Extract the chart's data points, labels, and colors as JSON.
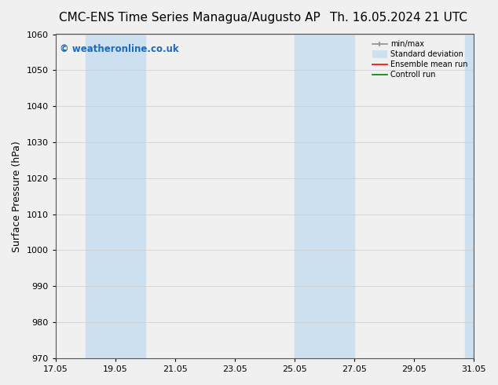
{
  "title_left": "CMC-ENS Time Series Managua/Augusto AP",
  "title_right": "Th. 16.05.2024 21 UTC",
  "ylabel": "Surface Pressure (hPa)",
  "ylim": [
    970,
    1060
  ],
  "yticks": [
    970,
    980,
    990,
    1000,
    1010,
    1020,
    1030,
    1040,
    1050,
    1060
  ],
  "xlim": [
    0,
    14
  ],
  "xtick_labels": [
    "17.05",
    "19.05",
    "21.05",
    "23.05",
    "25.05",
    "27.05",
    "29.05",
    "31.05"
  ],
  "xtick_positions": [
    0,
    2,
    4,
    6,
    8,
    10,
    12,
    14
  ],
  "shaded_bands": [
    {
      "xmin": 1.0,
      "xmax": 3.0,
      "color": "#cde0f0"
    },
    {
      "xmin": 8.0,
      "xmax": 10.0,
      "color": "#cde0f0"
    },
    {
      "xmin": 13.7,
      "xmax": 14.0,
      "color": "#cde0f0"
    }
  ],
  "watermark_text": "© weatheronline.co.uk",
  "watermark_color": "#1a6bbf",
  "legend_labels": [
    "min/max",
    "Standard deviation",
    "Ensemble mean run",
    "Controll run"
  ],
  "legend_colors": [
    "#909090",
    "#cde0f0",
    "red",
    "green"
  ],
  "bg_color": "#f0f0f0",
  "plot_bg_color": "#f0f0f0",
  "grid_color": "#cccccc",
  "title_fontsize": 11,
  "axis_fontsize": 8,
  "ylabel_fontsize": 9
}
